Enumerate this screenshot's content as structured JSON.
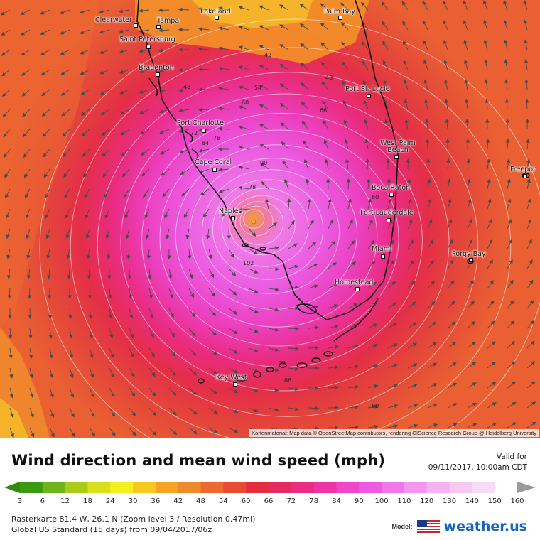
{
  "title": "Wind direction and mean wind speed (mph)",
  "valid_label": "Valid for",
  "valid_date": "09/11/2017, 10:00am CDT",
  "attribution": "Kartenmaterial: Map data © OpenStreetMap contributors, rendering GIScience Research Group @ Heidelberg University",
  "raster_info": "Rasterkarte 81.4 W, 26.1 N (Zoom level 3 / Resolution 0.47mi)",
  "model_info": "Global US Standard (15 days) from 09/04/2017/06z",
  "brand": {
    "model_label": "Model:",
    "logo_text": "weather.us",
    "flag_icon": "us-flag-icon"
  },
  "cities": [
    {
      "name": "Clearwater"
    },
    {
      "name": "Tampa"
    },
    {
      "name": "Lakeland"
    },
    {
      "name": "Palm Bay"
    },
    {
      "name": "Saint Petersburg"
    },
    {
      "name": "Bradenton"
    },
    {
      "name": "Port St. Lucie"
    },
    {
      "name": "Port Charlotte"
    },
    {
      "name": "West Palm Beach"
    },
    {
      "name": "Cape Coral"
    },
    {
      "name": "Freepor"
    },
    {
      "name": "Boca Raton"
    },
    {
      "name": "Naples"
    },
    {
      "name": "Fort Lauderdale"
    },
    {
      "name": "Miami"
    },
    {
      "name": "Porgy Bay"
    },
    {
      "name": "Homestead"
    },
    {
      "name": "Key West"
    }
  ],
  "contour_labels": [
    "42",
    "48",
    "48",
    "54",
    "60",
    "66",
    "72",
    "78",
    "84",
    "90",
    "78",
    "102",
    "60",
    "72",
    "66",
    "60"
  ],
  "scale": {
    "ticks": [
      "3",
      "6",
      "12",
      "18",
      "24",
      "30",
      "36",
      "42",
      "48",
      "54",
      "60",
      "66",
      "72",
      "78",
      "84",
      "90",
      "100",
      "110",
      "120",
      "130",
      "140",
      "150",
      "160"
    ],
    "colors": [
      "#3a9b10",
      "#6fb41a",
      "#a8cc18",
      "#d8e01a",
      "#f2ef1e",
      "#f7c81e",
      "#f3a424",
      "#ef8a2c",
      "#ec6a32",
      "#e84a34",
      "#e42e40",
      "#e42a60",
      "#ea2c82",
      "#ee34a4",
      "#f046c8",
      "#ee5ae2",
      "#ee78ea",
      "#f296ee",
      "#f4b2f0",
      "#f6c8f2",
      "#f8dcf6",
      "#ffffff"
    ]
  },
  "map_colors": {
    "land_outline": "#111111",
    "arrow": "#444444",
    "contour": "#ffffff"
  }
}
